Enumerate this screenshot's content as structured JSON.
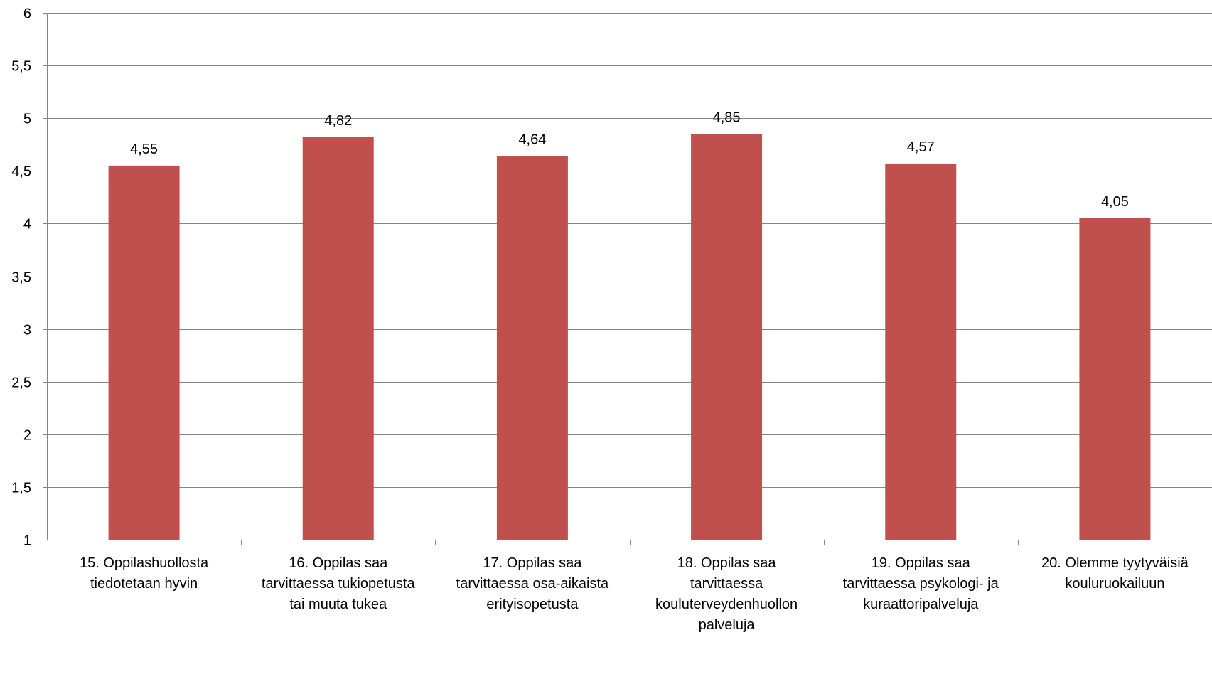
{
  "chart_data": {
    "type": "bar",
    "categories": [
      [
        "15. Oppilashuollosta",
        "tiedotetaan hyvin"
      ],
      [
        "16. Oppilas saa",
        "tarvittaessa tukiopetusta",
        "tai muuta tukea"
      ],
      [
        "17. Oppilas saa",
        "tarvittaessa osa-aikaista",
        "erityisopetusta"
      ],
      [
        "18. Oppilas saa",
        "tarvittaessa",
        "kouluterveydenhuollon",
        "palveluja"
      ],
      [
        "19. Oppilas saa",
        "tarvittaessa psykologi- ja",
        "kuraattoripalveluja"
      ],
      [
        "20. Olemme tyytyväisiä",
        "kouluruokailuun"
      ]
    ],
    "values": [
      4.55,
      4.82,
      4.64,
      4.85,
      4.57,
      4.05
    ],
    "value_labels": [
      "4,55",
      "4,82",
      "4,64",
      "4,85",
      "4,57",
      "4,05"
    ],
    "y_ticks": [
      "1",
      "1,5",
      "2",
      "2,5",
      "3",
      "3,5",
      "4",
      "4,5",
      "5",
      "5,5",
      "6"
    ],
    "ylim": [
      1,
      6
    ],
    "grid": true,
    "bar_color": "#C0504D",
    "grid_color": "#868686",
    "title": "",
    "xlabel": "",
    "ylabel": ""
  }
}
